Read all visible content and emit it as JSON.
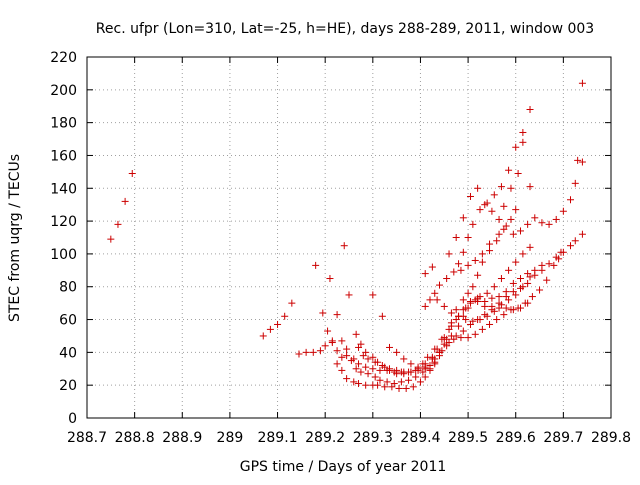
{
  "chart_data": {
    "type": "scatter",
    "title": "Rec. ufpr (Lon=310, Lat=-25, h=HE), days 288-289, 2011, window 003",
    "xlabel": "GPS time / Days of year 2011",
    "ylabel": "STEC from uqrg / TECUs",
    "xlim": [
      288.7,
      289.8
    ],
    "ylim": [
      0,
      220
    ],
    "x_ticks": [
      288.7,
      288.8,
      288.9,
      289.0,
      289.1,
      289.2,
      289.3,
      289.4,
      289.5,
      289.6,
      289.7,
      289.8
    ],
    "x_tick_labels": [
      "288.7",
      "288.8",
      "288.9",
      "289",
      "289.1",
      "289.2",
      "289.3",
      "289.4",
      "289.5",
      "289.6",
      "289.7",
      "289.8"
    ],
    "y_ticks": [
      0,
      20,
      40,
      60,
      80,
      100,
      120,
      140,
      160,
      180,
      200,
      220
    ],
    "y_tick_labels": [
      "0",
      "20",
      "40",
      "60",
      "80",
      "100",
      "120",
      "140",
      "160",
      "180",
      "200",
      "220"
    ],
    "grid": true,
    "legend": "none",
    "marker": "+",
    "marker_color": "#cc0000",
    "series": [
      {
        "points": [
          [
            288.75,
            109
          ],
          [
            288.765,
            118
          ],
          [
            288.78,
            132
          ],
          [
            288.795,
            149
          ],
          [
            289.07,
            50
          ],
          [
            289.085,
            54
          ],
          [
            289.1,
            57
          ],
          [
            289.115,
            62
          ],
          [
            289.13,
            70
          ],
          [
            289.145,
            39
          ],
          [
            289.16,
            40
          ],
          [
            289.175,
            40
          ],
          [
            289.19,
            41
          ],
          [
            289.2,
            44
          ],
          [
            289.215,
            47
          ],
          [
            289.225,
            33
          ],
          [
            289.235,
            29
          ],
          [
            289.245,
            24
          ],
          [
            289.26,
            22
          ],
          [
            289.27,
            21
          ],
          [
            289.285,
            20
          ],
          [
            289.3,
            20
          ],
          [
            289.31,
            20
          ],
          [
            289.325,
            19
          ],
          [
            289.34,
            19
          ],
          [
            289.355,
            18
          ],
          [
            289.37,
            18
          ],
          [
            289.385,
            19
          ],
          [
            289.4,
            22
          ],
          [
            289.41,
            25
          ],
          [
            289.42,
            29
          ],
          [
            289.43,
            33
          ],
          [
            289.44,
            38
          ],
          [
            289.455,
            44
          ],
          [
            289.47,
            48
          ],
          [
            289.485,
            49
          ],
          [
            289.5,
            49
          ],
          [
            289.515,
            51
          ],
          [
            289.53,
            54
          ],
          [
            289.545,
            57
          ],
          [
            289.56,
            60
          ],
          [
            289.575,
            63
          ],
          [
            289.59,
            66
          ],
          [
            289.605,
            67
          ],
          [
            289.62,
            70
          ],
          [
            289.635,
            74
          ],
          [
            289.65,
            78
          ],
          [
            289.665,
            84
          ],
          [
            289.68,
            93
          ],
          [
            289.69,
            97
          ],
          [
            289.7,
            101
          ],
          [
            289.715,
            105
          ],
          [
            289.725,
            108
          ],
          [
            289.74,
            112
          ],
          [
            289.18,
            93
          ],
          [
            289.195,
            64
          ],
          [
            289.205,
            53
          ],
          [
            289.215,
            46
          ],
          [
            289.225,
            41
          ],
          [
            289.235,
            37
          ],
          [
            289.245,
            38
          ],
          [
            289.255,
            35
          ],
          [
            289.265,
            30
          ],
          [
            289.275,
            28
          ],
          [
            289.29,
            27
          ],
          [
            289.305,
            25
          ],
          [
            289.315,
            23
          ],
          [
            289.33,
            22
          ],
          [
            289.345,
            21
          ],
          [
            289.36,
            22
          ],
          [
            289.375,
            23
          ],
          [
            289.39,
            25
          ],
          [
            289.405,
            28
          ],
          [
            289.42,
            32
          ],
          [
            289.43,
            36
          ],
          [
            289.445,
            41
          ],
          [
            289.46,
            46
          ],
          [
            289.475,
            50
          ],
          [
            289.49,
            53
          ],
          [
            289.505,
            57
          ],
          [
            289.52,
            60
          ],
          [
            289.535,
            63
          ],
          [
            289.55,
            66
          ],
          [
            289.565,
            67
          ],
          [
            289.58,
            67
          ],
          [
            289.595,
            66
          ],
          [
            289.61,
            67
          ],
          [
            289.625,
            70
          ],
          [
            289.21,
            85
          ],
          [
            289.225,
            63
          ],
          [
            289.235,
            47
          ],
          [
            289.245,
            42
          ],
          [
            289.26,
            36
          ],
          [
            289.27,
            33
          ],
          [
            289.285,
            31
          ],
          [
            289.3,
            30
          ],
          [
            289.315,
            29
          ],
          [
            289.33,
            29
          ],
          [
            289.345,
            28
          ],
          [
            289.36,
            28
          ],
          [
            289.375,
            28
          ],
          [
            289.39,
            29
          ],
          [
            289.405,
            33
          ],
          [
            289.415,
            37
          ],
          [
            289.43,
            42
          ],
          [
            289.445,
            48
          ],
          [
            289.46,
            54
          ],
          [
            289.475,
            60
          ],
          [
            289.49,
            66
          ],
          [
            289.505,
            70
          ],
          [
            289.52,
            71
          ],
          [
            289.535,
            68
          ],
          [
            289.55,
            68
          ],
          [
            289.565,
            70
          ],
          [
            289.58,
            74
          ],
          [
            289.595,
            77
          ],
          [
            289.61,
            79
          ],
          [
            289.625,
            82
          ],
          [
            289.64,
            87
          ],
          [
            289.655,
            90
          ],
          [
            289.67,
            94
          ],
          [
            289.685,
            98
          ],
          [
            289.695,
            101
          ],
          [
            289.24,
            105
          ],
          [
            289.25,
            75
          ],
          [
            289.265,
            51
          ],
          [
            289.275,
            45
          ],
          [
            289.285,
            40
          ],
          [
            289.3,
            37
          ],
          [
            289.31,
            34
          ],
          [
            289.325,
            31
          ],
          [
            289.335,
            29
          ],
          [
            289.35,
            27
          ],
          [
            289.365,
            27
          ],
          [
            289.38,
            28
          ],
          [
            289.395,
            30
          ],
          [
            289.41,
            33
          ],
          [
            289.425,
            37
          ],
          [
            289.435,
            42
          ],
          [
            289.45,
            49
          ],
          [
            289.465,
            56
          ],
          [
            289.48,
            62
          ],
          [
            289.495,
            67
          ],
          [
            289.505,
            71
          ],
          [
            289.52,
            73
          ],
          [
            289.535,
            71
          ],
          [
            289.55,
            73
          ],
          [
            289.565,
            74
          ],
          [
            289.58,
            77
          ],
          [
            289.595,
            82
          ],
          [
            289.61,
            85
          ],
          [
            289.625,
            88
          ],
          [
            289.64,
            90
          ],
          [
            289.655,
            93
          ],
          [
            289.27,
            43
          ],
          [
            289.28,
            38
          ],
          [
            289.29,
            36
          ],
          [
            289.305,
            34
          ],
          [
            289.32,
            32
          ],
          [
            289.335,
            30
          ],
          [
            289.35,
            29
          ],
          [
            289.365,
            28
          ],
          [
            289.38,
            28
          ],
          [
            289.395,
            29
          ],
          [
            289.41,
            31
          ],
          [
            289.425,
            36
          ],
          [
            289.44,
            40
          ],
          [
            289.45,
            45
          ],
          [
            289.465,
            50
          ],
          [
            289.48,
            56
          ],
          [
            289.49,
            62
          ],
          [
            289.5,
            67
          ],
          [
            289.515,
            72
          ],
          [
            289.525,
            74
          ],
          [
            289.54,
            76
          ],
          [
            289.555,
            80
          ],
          [
            289.57,
            85
          ],
          [
            289.585,
            90
          ],
          [
            289.6,
            95
          ],
          [
            289.615,
            100
          ],
          [
            289.63,
            104
          ],
          [
            289.3,
            75
          ],
          [
            289.32,
            62
          ],
          [
            289.335,
            43
          ],
          [
            289.35,
            40
          ],
          [
            289.365,
            36
          ],
          [
            289.38,
            33
          ],
          [
            289.395,
            31
          ],
          [
            289.41,
            30
          ],
          [
            289.42,
            30
          ],
          [
            289.43,
            34
          ],
          [
            289.44,
            40
          ],
          [
            289.455,
            48
          ],
          [
            289.465,
            58
          ],
          [
            289.475,
            66
          ],
          [
            289.49,
            72
          ],
          [
            289.5,
            76
          ],
          [
            289.51,
            80
          ],
          [
            289.52,
            87
          ],
          [
            289.53,
            95
          ],
          [
            289.545,
            102
          ],
          [
            289.56,
            108
          ],
          [
            289.575,
            115
          ],
          [
            289.59,
            121
          ],
          [
            289.6,
            127
          ],
          [
            289.41,
            68
          ],
          [
            289.42,
            72
          ],
          [
            289.43,
            76
          ],
          [
            289.44,
            81
          ],
          [
            289.455,
            85
          ],
          [
            289.47,
            89
          ],
          [
            289.48,
            94
          ],
          [
            289.49,
            101
          ],
          [
            289.5,
            110
          ],
          [
            289.51,
            118
          ],
          [
            289.525,
            127
          ],
          [
            289.54,
            131
          ],
          [
            289.555,
            136
          ],
          [
            289.57,
            141
          ],
          [
            289.585,
            151
          ],
          [
            289.6,
            165
          ],
          [
            289.615,
            174
          ],
          [
            289.63,
            188
          ],
          [
            289.41,
            88
          ],
          [
            289.425,
            92
          ],
          [
            289.435,
            72
          ],
          [
            289.45,
            68
          ],
          [
            289.465,
            64
          ],
          [
            289.48,
            62
          ],
          [
            289.495,
            60
          ],
          [
            289.51,
            59
          ],
          [
            289.525,
            60
          ],
          [
            289.54,
            62
          ],
          [
            289.555,
            65
          ],
          [
            289.57,
            69
          ],
          [
            289.585,
            72
          ],
          [
            289.6,
            75
          ],
          [
            289.615,
            80
          ],
          [
            289.63,
            86
          ],
          [
            289.485,
            90
          ],
          [
            289.5,
            93
          ],
          [
            289.515,
            96
          ],
          [
            289.53,
            100
          ],
          [
            289.545,
            106
          ],
          [
            289.565,
            112
          ],
          [
            289.58,
            117
          ],
          [
            289.595,
            112
          ],
          [
            289.61,
            114
          ],
          [
            289.625,
            118
          ],
          [
            289.64,
            122
          ],
          [
            289.655,
            119
          ],
          [
            289.67,
            118
          ],
          [
            289.685,
            121
          ],
          [
            289.7,
            126
          ],
          [
            289.715,
            133
          ],
          [
            289.725,
            143
          ],
          [
            289.73,
            157
          ],
          [
            289.74,
            156
          ],
          [
            289.74,
            204
          ],
          [
            289.46,
            100
          ],
          [
            289.475,
            110
          ],
          [
            289.49,
            122
          ],
          [
            289.505,
            135
          ],
          [
            289.52,
            140
          ],
          [
            289.535,
            130
          ],
          [
            289.55,
            126
          ],
          [
            289.565,
            121
          ],
          [
            289.575,
            129
          ],
          [
            289.59,
            140
          ],
          [
            289.605,
            149
          ],
          [
            289.615,
            168
          ],
          [
            289.63,
            141
          ]
        ]
      }
    ]
  }
}
